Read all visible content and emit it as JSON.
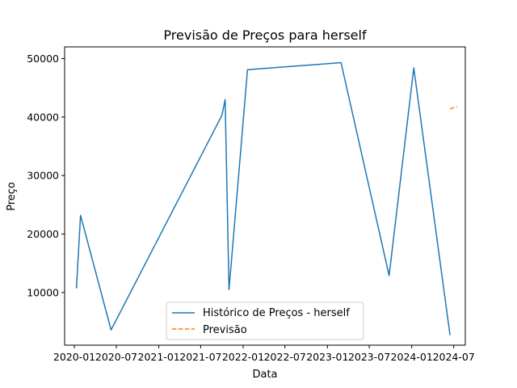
{
  "chart_data": {
    "type": "line",
    "title": "Previsão de Preços para herself",
    "xlabel": "Data",
    "ylabel": "Preço",
    "x_axis_type": "date",
    "xlim": [
      "2019-11-20",
      "2024-08-20"
    ],
    "ylim": [
      1000,
      52000
    ],
    "x_ticks": [
      {
        "date": "2020-01-01",
        "label": "2020-01"
      },
      {
        "date": "2020-07-01",
        "label": "2020-07"
      },
      {
        "date": "2021-01-01",
        "label": "2021-01"
      },
      {
        "date": "2021-07-01",
        "label": "2021-07"
      },
      {
        "date": "2022-01-01",
        "label": "2022-01"
      },
      {
        "date": "2022-07-01",
        "label": "2022-07"
      },
      {
        "date": "2023-01-01",
        "label": "2023-01"
      },
      {
        "date": "2023-07-01",
        "label": "2023-07"
      },
      {
        "date": "2024-01-01",
        "label": "2024-01"
      },
      {
        "date": "2024-07-01",
        "label": "2024-07"
      }
    ],
    "y_ticks": [
      10000,
      20000,
      30000,
      40000,
      50000
    ],
    "grid": false,
    "legend_position": "bottom-center",
    "series": [
      {
        "name": "Histórico de Preços - herself",
        "color": "#1f77b4",
        "style": "solid",
        "points": [
          {
            "x": "2020-01-10",
            "y": 10700
          },
          {
            "x": "2020-01-28",
            "y": 23200
          },
          {
            "x": "2020-06-08",
            "y": 3600
          },
          {
            "x": "2021-10-01",
            "y": 40300
          },
          {
            "x": "2021-10-15",
            "y": 43000
          },
          {
            "x": "2021-11-01",
            "y": 10500
          },
          {
            "x": "2022-01-20",
            "y": 48100
          },
          {
            "x": "2023-03-01",
            "y": 49300
          },
          {
            "x": "2023-09-25",
            "y": 12900
          },
          {
            "x": "2024-01-10",
            "y": 48400
          },
          {
            "x": "2024-06-15",
            "y": 2700
          }
        ]
      },
      {
        "name": "Previsão",
        "color": "#ff7f0e",
        "style": "dashed",
        "points": [
          {
            "x": "2024-06-15",
            "y": 41400
          },
          {
            "x": "2024-07-15",
            "y": 41800
          }
        ]
      }
    ]
  }
}
